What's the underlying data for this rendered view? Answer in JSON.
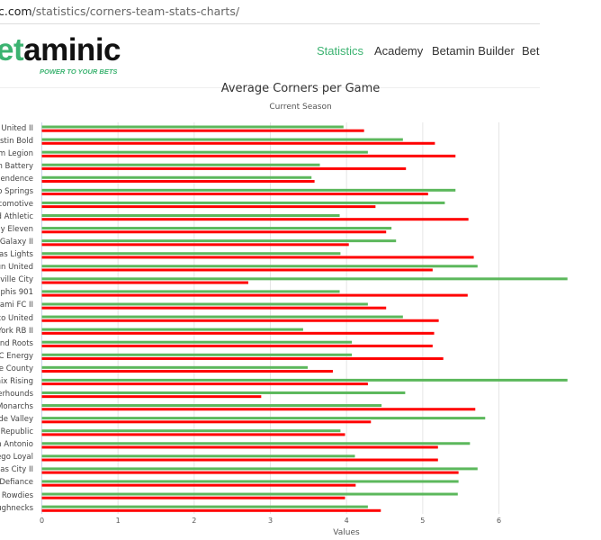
{
  "browser": {
    "url_host": "c.com",
    "url_path": "/statistics/corners-team-stats-charts/"
  },
  "header": {
    "logo_green": "et",
    "logo_black": "aminic",
    "tagline": "POWER TO YOUR BETS",
    "nav": [
      "Statistics",
      "Academy",
      "Betamin Builder",
      "Bet"
    ]
  },
  "colors": {
    "green": "#5cb85c",
    "red": "#ff0000",
    "accent": "#3cb371"
  },
  "chart_data": {
    "type": "bar",
    "orientation": "horizontal",
    "title": "Average Corners per Game",
    "subtitle": "Current Season",
    "xlabel": "Values",
    "xlim": [
      0,
      7
    ],
    "xticks": [
      "0",
      "1",
      "2",
      "3",
      "4",
      "5",
      "6"
    ],
    "grid": true,
    "categories": [
      "a United II",
      "ustin Bold",
      "am Legion",
      "on Battery",
      "ependence",
      "do Springs",
      "ocomotive",
      "rd Athletic",
      "ndy Eleven",
      "A Galaxy II",
      "gas Lights",
      "oun United",
      "isville City",
      "mphis 901",
      "Miami FC II",
      "ico United",
      "York RB II",
      "and Roots",
      "KC Energy",
      "ge County",
      "nix Rising",
      "verhounds",
      "Monarchs",
      "nde Valley",
      "o Republic",
      "n Antonio",
      "iego Loyal",
      "sas City II",
      "a Defiance",
      "y Rowdies",
      "ughnecks"
    ],
    "series": [
      {
        "name": "green",
        "color": "#5cb85c",
        "values": [
          3.96,
          4.74,
          4.28,
          3.65,
          3.54,
          5.43,
          5.29,
          3.91,
          4.59,
          4.65,
          3.92,
          5.72,
          6.9,
          3.91,
          4.28,
          4.74,
          3.43,
          4.07,
          4.07,
          3.49,
          6.9,
          4.77,
          4.46,
          5.82,
          3.92,
          5.62,
          4.11,
          5.72,
          5.47,
          5.46,
          4.28
        ]
      },
      {
        "name": "red",
        "color": "#ff0000",
        "values": [
          4.23,
          5.16,
          5.43,
          4.78,
          3.58,
          5.07,
          4.38,
          5.6,
          4.52,
          4.03,
          5.67,
          5.13,
          2.71,
          5.59,
          4.52,
          5.21,
          5.15,
          5.13,
          5.27,
          3.82,
          4.28,
          2.88,
          5.69,
          4.32,
          3.98,
          5.2,
          5.2,
          5.47,
          4.12,
          3.98,
          4.45
        ]
      }
    ]
  }
}
